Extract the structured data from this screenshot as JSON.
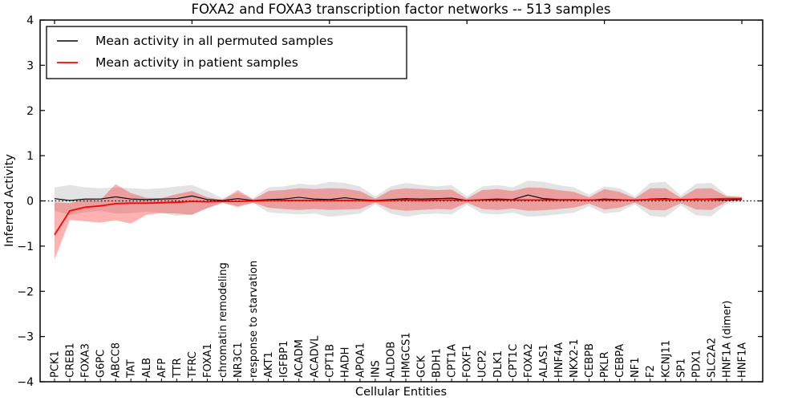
{
  "title": "FOXA2 and FOXA3 transcription factor networks -- 513 samples",
  "legend": {
    "items": [
      {
        "label": "Mean activity in all permuted samples",
        "color": "#000000"
      },
      {
        "label": "Mean activity in patient samples",
        "color": "#ff0000"
      }
    ]
  },
  "chart_data": {
    "type": "line",
    "title": "FOXA2 and FOXA3 transcription factor networks -- 513 samples",
    "xlabel": "Cellular Entities",
    "ylabel": "Inferred Activity",
    "ylim": [
      -4,
      4
    ],
    "yticks": [
      -4,
      -3,
      -2,
      -1,
      0,
      1,
      2,
      3,
      4
    ],
    "grid": false,
    "legend_position": "upper left",
    "zero_line_style": "dotted",
    "categories": [
      "PCK1",
      "CREB1",
      "FOXA3",
      "G6PC",
      "ABCC8",
      "TAT",
      "ALB",
      "AFP",
      "TTR",
      "TFRC",
      "FOXA1",
      "chromatin remodeling",
      "NR3C1",
      "response to starvation",
      "AKT1",
      "IGFBP1",
      "ACADM",
      "ACADVL",
      "CPT1B",
      "HADH",
      "APOA1",
      "INS",
      "ALDOB",
      "HMGCS1",
      "GCK",
      "BDH1",
      "CPT1A",
      "FOXF1",
      "UCP2",
      "DLK1",
      "CPT1C",
      "FOXA2",
      "ALAS1",
      "HNF4A",
      "NKX2-1",
      "CEBPB",
      "PKLR",
      "CEBPA",
      "NF1",
      "F2",
      "KCNJ11",
      "SP1",
      "PDX1",
      "SLC2A2",
      "HNF1A (dimer)",
      "HNF1A"
    ],
    "series": [
      {
        "name": "Mean activity in all permuted samples",
        "color": "#000000",
        "line_width": 1.1,
        "line_name": "permuted-mean-line",
        "band_name": "permuted-band",
        "band_color": "#999999",
        "band_opacity": 0.28,
        "values": [
          0.05,
          0.01,
          0.04,
          0.04,
          0.09,
          0.04,
          0.03,
          0.04,
          0.05,
          0.11,
          0.03,
          0.01,
          0.05,
          0.01,
          0.03,
          0.04,
          0.08,
          0.04,
          0.03,
          0.07,
          0.03,
          0.01,
          0.03,
          0.05,
          0.04,
          0.05,
          0.06,
          0.01,
          0.03,
          0.04,
          0.03,
          0.13,
          0.05,
          0.03,
          0.03,
          0.02,
          0.04,
          0.03,
          0.01,
          0.04,
          0.05,
          0.02,
          0.04,
          0.03,
          0.02,
          0.03
        ],
        "band_upper": [
          0.3,
          0.35,
          0.3,
          0.28,
          0.3,
          0.28,
          0.26,
          0.28,
          0.32,
          0.35,
          0.22,
          0.06,
          0.18,
          0.06,
          0.3,
          0.32,
          0.38,
          0.35,
          0.42,
          0.4,
          0.32,
          0.1,
          0.32,
          0.4,
          0.35,
          0.32,
          0.35,
          0.1,
          0.32,
          0.35,
          0.3,
          0.45,
          0.42,
          0.35,
          0.3,
          0.14,
          0.32,
          0.28,
          0.1,
          0.4,
          0.42,
          0.12,
          0.38,
          0.4,
          0.13,
          0.1
        ],
        "band_lower": [
          -0.22,
          -0.31,
          -0.25,
          -0.22,
          -0.28,
          -0.27,
          -0.24,
          -0.26,
          -0.33,
          -0.3,
          -0.16,
          -0.05,
          -0.15,
          -0.05,
          -0.25,
          -0.28,
          -0.3,
          -0.28,
          -0.35,
          -0.32,
          -0.28,
          -0.08,
          -0.28,
          -0.35,
          -0.3,
          -0.28,
          -0.3,
          -0.09,
          -0.28,
          -0.3,
          -0.26,
          -0.35,
          -0.33,
          -0.3,
          -0.26,
          -0.12,
          -0.28,
          -0.24,
          -0.08,
          -0.33,
          -0.36,
          -0.1,
          -0.32,
          -0.34,
          -0.06,
          -0.02
        ]
      },
      {
        "name": "Mean activity in patient samples",
        "color": "#ff0000",
        "line_width": 1.8,
        "line_name": "patient-mean-line",
        "band_name": "patient-band",
        "band_color": "#ff0000",
        "band_opacity": 0.3,
        "values": [
          -0.75,
          -0.22,
          -0.14,
          -0.11,
          -0.06,
          -0.05,
          -0.05,
          -0.04,
          -0.03,
          -0.01,
          -0.02,
          -0.01,
          -0.01,
          0.0,
          0.01,
          0.01,
          0.01,
          0.01,
          0.01,
          0.01,
          0.01,
          0.0,
          0.01,
          0.02,
          0.01,
          0.02,
          0.02,
          0.01,
          0.02,
          0.02,
          0.02,
          0.02,
          0.02,
          0.02,
          0.02,
          0.02,
          0.02,
          0.02,
          0.02,
          0.03,
          0.03,
          0.03,
          0.03,
          0.04,
          0.05,
          0.05
        ],
        "band_upper": [
          -0.03,
          -0.05,
          0.04,
          0.02,
          0.37,
          0.17,
          0.07,
          0.06,
          0.15,
          0.22,
          0.08,
          0.02,
          0.24,
          0.03,
          0.22,
          0.24,
          0.28,
          0.26,
          0.28,
          0.27,
          0.22,
          0.05,
          0.24,
          0.28,
          0.26,
          0.24,
          0.25,
          0.05,
          0.24,
          0.26,
          0.22,
          0.3,
          0.29,
          0.24,
          0.2,
          0.08,
          0.26,
          0.2,
          0.06,
          0.28,
          0.28,
          0.07,
          0.27,
          0.28,
          0.1,
          0.08
        ],
        "band_lower": [
          -1.3,
          -0.42,
          -0.45,
          -0.48,
          -0.43,
          -0.5,
          -0.31,
          -0.27,
          -0.28,
          -0.31,
          -0.16,
          -0.04,
          -0.12,
          -0.04,
          -0.15,
          -0.18,
          -0.2,
          -0.18,
          -0.2,
          -0.19,
          -0.18,
          -0.04,
          -0.18,
          -0.22,
          -0.2,
          -0.18,
          -0.19,
          -0.04,
          -0.18,
          -0.2,
          -0.17,
          -0.22,
          -0.21,
          -0.18,
          -0.15,
          -0.06,
          -0.19,
          -0.15,
          -0.04,
          -0.2,
          -0.21,
          -0.05,
          -0.19,
          -0.2,
          -0.02,
          0.02
        ]
      }
    ]
  }
}
